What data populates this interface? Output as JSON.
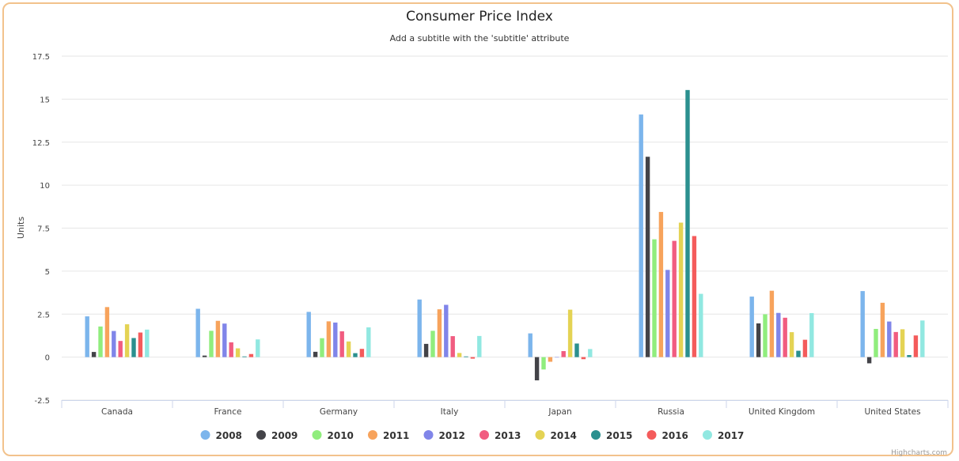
{
  "chart_data": {
    "type": "bar",
    "title": "Consumer Price Index",
    "subtitle": "Add a subtitle with the 'subtitle' attribute",
    "xlabel": "",
    "ylabel": "Units",
    "ylim": [
      -2.5,
      17.5
    ],
    "yticks": [
      "-2.5",
      "0",
      "2.5",
      "5",
      "7.5",
      "10",
      "12.5",
      "15",
      "17.5"
    ],
    "grid": true,
    "legend_position": "bottom-center",
    "categories": [
      "Canada",
      "France",
      "Germany",
      "Italy",
      "Japan",
      "Russia",
      "United Kingdom",
      "United States"
    ],
    "series": [
      {
        "name": "2008",
        "color": "#7cb5ec",
        "values": [
          2.37,
          2.81,
          2.63,
          3.35,
          1.38,
          14.11,
          3.52,
          3.84
        ]
      },
      {
        "name": "2009",
        "color": "#434348",
        "values": [
          0.3,
          0.09,
          0.31,
          0.77,
          -1.35,
          11.65,
          1.96,
          -0.36
        ]
      },
      {
        "name": "2010",
        "color": "#90ed7d",
        "values": [
          1.78,
          1.53,
          1.1,
          1.53,
          -0.72,
          6.85,
          2.49,
          1.64
        ]
      },
      {
        "name": "2011",
        "color": "#f7a35c",
        "values": [
          2.91,
          2.11,
          2.08,
          2.78,
          -0.27,
          8.44,
          3.86,
          3.16
        ]
      },
      {
        "name": "2012",
        "color": "#8085e9",
        "values": [
          1.52,
          1.95,
          2.01,
          3.04,
          0.0,
          5.07,
          2.57,
          2.07
        ]
      },
      {
        "name": "2013",
        "color": "#f15c80",
        "values": [
          0.94,
          0.86,
          1.5,
          1.22,
          0.35,
          6.76,
          2.29,
          1.46
        ]
      },
      {
        "name": "2014",
        "color": "#e4d354",
        "values": [
          1.91,
          0.51,
          0.91,
          0.24,
          2.76,
          7.82,
          1.45,
          1.62
        ]
      },
      {
        "name": "2015",
        "color": "#2b908f",
        "values": [
          1.11,
          0.04,
          0.23,
          0.04,
          0.79,
          15.53,
          0.37,
          0.12
        ]
      },
      {
        "name": "2016",
        "color": "#f45b5b",
        "values": [
          1.43,
          0.18,
          0.48,
          -0.09,
          -0.12,
          7.04,
          1.01,
          1.26
        ]
      },
      {
        "name": "2017",
        "color": "#91e8e1",
        "values": [
          1.6,
          1.03,
          1.73,
          1.23,
          0.47,
          3.68,
          2.56,
          2.13
        ]
      }
    ]
  },
  "credits": "Highcharts.com"
}
